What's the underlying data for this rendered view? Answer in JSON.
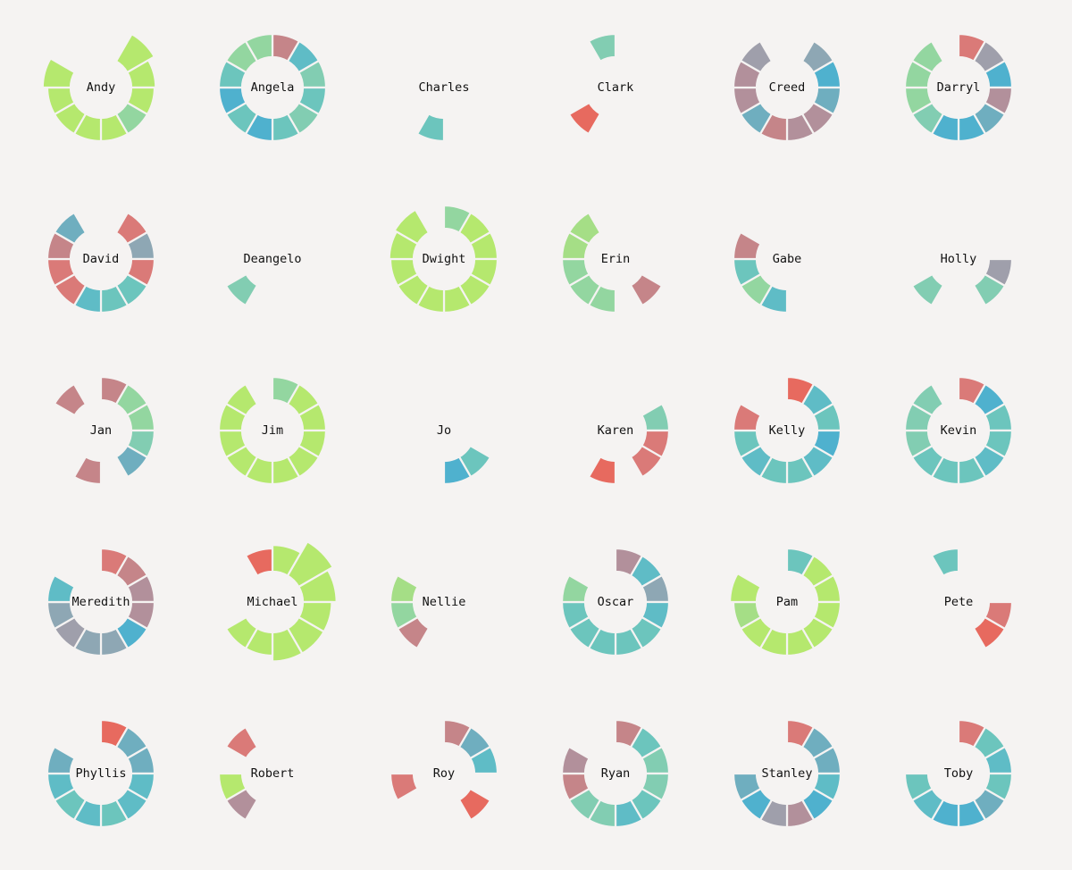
{
  "chart_data": {
    "type": "radial-bar-grid",
    "segments_per_chart": 12,
    "colors": {
      "lime": "#b5e86e",
      "lightgreen": "#a5de86",
      "mint": "#93d6a0",
      "seafoam": "#82cdb2",
      "teal": "#6cc5bd",
      "cyan": "#5fbcc6",
      "blue": "#4fb1ce",
      "steel": "#6faebf",
      "slate": "#8ea7b4",
      "grey": "#9f9fab",
      "mauve": "#b2909b",
      "rose": "#c58589",
      "salmon": "#da7a78",
      "red": "#e76a5f"
    },
    "characters": [
      {
        "name": "Andy",
        "segments": [
          null,
          "lime:1.35",
          "lime:1.05",
          "lime",
          "mint",
          "lime",
          "lime",
          "lime",
          "lime",
          "lime:1.2",
          null,
          null
        ]
      },
      {
        "name": "Angela",
        "segments": [
          "rose",
          "cyan",
          "seafoam",
          "teal",
          "seafoam",
          "teal",
          "blue",
          "teal",
          "blue",
          "teal",
          "mint",
          "mint"
        ]
      },
      {
        "name": "Charles",
        "segments": [
          null,
          null,
          null,
          null,
          null,
          null,
          "teal",
          null,
          null,
          null,
          null,
          null
        ]
      },
      {
        "name": "Clark",
        "segments": [
          null,
          null,
          null,
          null,
          null,
          null,
          null,
          "red",
          null,
          null,
          null,
          "seafoam"
        ]
      },
      {
        "name": "Creed",
        "segments": [
          null,
          "slate",
          "blue",
          "steel",
          "mauve",
          "mauve",
          "rose",
          "steel",
          "mauve",
          "mauve",
          "grey",
          null
        ]
      },
      {
        "name": "Darryl",
        "segments": [
          "salmon",
          "grey",
          "blue",
          "mauve",
          "steel",
          "blue",
          "blue",
          "seafoam",
          "mint",
          "mint",
          "mint",
          null
        ]
      },
      {
        "name": "David",
        "segments": [
          null,
          "salmon",
          "slate",
          "salmon",
          "teal",
          "teal",
          "cyan",
          "salmon",
          "salmon",
          "rose",
          "steel",
          null
        ]
      },
      {
        "name": "Deangelo",
        "segments": [
          null,
          null,
          null,
          null,
          null,
          null,
          null,
          "seafoam",
          null,
          null,
          null,
          null
        ]
      },
      {
        "name": "Dwight",
        "segments": [
          "mint",
          "lime",
          "lime",
          "lime",
          "lime",
          "lime",
          "lime",
          "lime",
          "lime",
          "lime:1.05",
          "lime:1.15",
          null
        ]
      },
      {
        "name": "Erin",
        "segments": [
          null,
          null,
          null,
          null,
          "rose",
          null,
          "mint",
          "mint",
          "mint",
          "lightgreen",
          "lightgreen",
          null
        ]
      },
      {
        "name": "Gabe",
        "segments": [
          null,
          null,
          null,
          null,
          null,
          null,
          "cyan",
          "mint",
          "teal",
          "rose",
          null,
          null
        ]
      },
      {
        "name": "Holly",
        "segments": [
          null,
          null,
          null,
          "grey",
          "seafoam",
          null,
          null,
          "seafoam",
          null,
          null,
          null,
          null
        ]
      },
      {
        "name": "Jan",
        "segments": [
          "rose",
          "mint",
          "mint",
          "seafoam",
          "steel",
          null,
          "rose",
          null,
          null,
          null,
          "rose",
          null
        ]
      },
      {
        "name": "Jim",
        "segments": [
          "mint",
          "lime",
          "lime",
          "lime",
          "lime",
          "lime",
          "lime",
          "lime",
          "lime",
          "lime",
          "lime",
          null
        ]
      },
      {
        "name": "Jo",
        "segments": [
          null,
          null,
          null,
          null,
          "teal",
          "blue",
          null,
          null,
          null,
          null,
          null,
          null
        ]
      },
      {
        "name": "Karen",
        "segments": [
          null,
          null,
          "seafoam",
          "salmon",
          "salmon",
          null,
          "red",
          null,
          null,
          null,
          null,
          null
        ]
      },
      {
        "name": "Kelly",
        "segments": [
          "red",
          "cyan",
          "teal",
          "blue",
          "cyan",
          "teal",
          "teal",
          "cyan",
          "teal",
          "salmon",
          null,
          null
        ]
      },
      {
        "name": "Kevin",
        "segments": [
          "salmon",
          "blue",
          "teal",
          "teal",
          "cyan",
          "teal",
          "teal",
          "teal",
          "seafoam",
          "seafoam",
          "seafoam",
          null
        ]
      },
      {
        "name": "Meredith",
        "segments": [
          "salmon",
          "rose",
          "mauve",
          "mauve",
          "blue",
          "slate",
          "slate",
          "grey",
          "slate",
          "cyan",
          null,
          null
        ]
      },
      {
        "name": "Michael",
        "segments": [
          "lime:1.15",
          "lime:1.7",
          "lime:1.45",
          "lime:1.25",
          "lime:1.25",
          "lime:1.25",
          "lime:1.0",
          "lime:1.0",
          null,
          null,
          null,
          "red"
        ]
      },
      {
        "name": "Nellie",
        "segments": [
          null,
          null,
          null,
          null,
          null,
          null,
          null,
          "rose",
          "mint",
          "lightgreen",
          null,
          null
        ]
      },
      {
        "name": "Oscar",
        "segments": [
          "mauve",
          "cyan",
          "slate",
          "cyan",
          "teal",
          "teal",
          "teal",
          "teal",
          "teal",
          "mint",
          null,
          null
        ]
      },
      {
        "name": "Pam",
        "segments": [
          "teal",
          "lime",
          "lime",
          "lime",
          "lime",
          "lime",
          "lime",
          "lime",
          "lightgreen",
          "lime:1.15",
          null,
          null
        ]
      },
      {
        "name": "Pete",
        "segments": [
          null,
          null,
          null,
          "salmon",
          "red",
          null,
          null,
          null,
          null,
          null,
          null,
          "teal"
        ]
      },
      {
        "name": "Phyllis",
        "segments": [
          "red",
          "steel",
          "steel",
          "cyan",
          "cyan",
          "teal",
          "cyan",
          "teal",
          "cyan",
          "steel",
          null,
          null
        ]
      },
      {
        "name": "Robert",
        "segments": [
          null,
          null,
          null,
          null,
          null,
          null,
          null,
          "mauve",
          "lime",
          null,
          "salmon",
          null
        ]
      },
      {
        "name": "Roy",
        "segments": [
          "rose",
          "steel",
          "cyan",
          null,
          "red",
          null,
          null,
          null,
          "salmon",
          null,
          null,
          null
        ]
      },
      {
        "name": "Ryan",
        "segments": [
          "rose",
          "teal",
          "seafoam",
          "seafoam",
          "teal",
          "cyan",
          "seafoam",
          "seafoam",
          "rose",
          "mauve",
          null,
          null
        ]
      },
      {
        "name": "Stanley",
        "segments": [
          "salmon",
          "steel",
          "steel",
          "cyan",
          "blue",
          "mauve",
          "grey",
          "blue",
          "steel",
          null,
          null,
          null
        ]
      },
      {
        "name": "Toby",
        "segments": [
          "salmon",
          "teal",
          "cyan",
          "teal",
          "steel",
          "blue",
          "blue",
          "cyan",
          "teal",
          null,
          null,
          null
        ]
      }
    ]
  }
}
